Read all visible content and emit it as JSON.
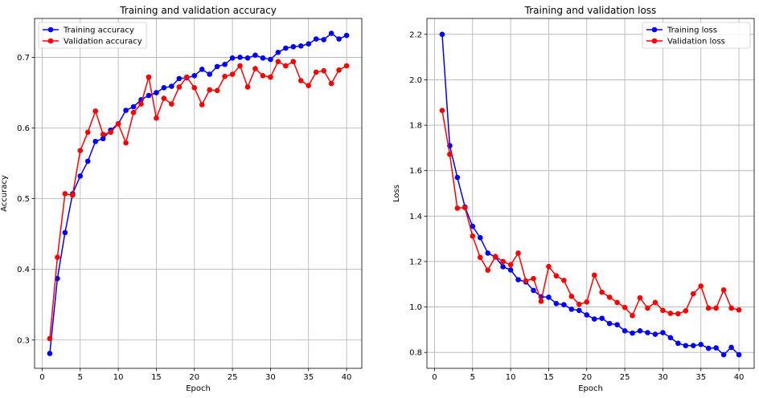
{
  "chart_data": [
    {
      "type": "line",
      "title": "Training and validation accuracy",
      "xlabel": "Epoch",
      "ylabel": "Accuracy",
      "xlim": [
        -1,
        42
      ],
      "ylim": [
        0.26,
        0.755
      ],
      "xticks": [
        0,
        5,
        10,
        15,
        20,
        25,
        30,
        35,
        40
      ],
      "yticks": [
        0.3,
        0.4,
        0.5,
        0.6,
        0.7
      ],
      "grid": true,
      "legend": "top-left",
      "x": [
        1,
        2,
        3,
        4,
        5,
        6,
        7,
        8,
        9,
        10,
        11,
        12,
        13,
        14,
        15,
        16,
        17,
        18,
        19,
        20,
        21,
        22,
        23,
        24,
        25,
        26,
        27,
        28,
        29,
        30,
        31,
        32,
        33,
        34,
        35,
        36,
        37,
        38,
        39,
        40
      ],
      "series": [
        {
          "name": "Training accuracy",
          "color": "#0000ff",
          "values": [
            0.281,
            0.387,
            0.452,
            0.507,
            0.532,
            0.553,
            0.581,
            0.585,
            0.597,
            0.606,
            0.625,
            0.63,
            0.64,
            0.646,
            0.65,
            0.657,
            0.659,
            0.67,
            0.671,
            0.674,
            0.683,
            0.676,
            0.687,
            0.69,
            0.699,
            0.7,
            0.699,
            0.703,
            0.699,
            0.697,
            0.707,
            0.713,
            0.715,
            0.716,
            0.719,
            0.726,
            0.725,
            0.734,
            0.726,
            0.731
          ]
        },
        {
          "name": "Validation accuracy",
          "color": "#ff0000",
          "values": [
            0.302,
            0.417,
            0.507,
            0.505,
            0.568,
            0.594,
            0.624,
            0.591,
            0.594,
            0.606,
            0.579,
            0.622,
            0.634,
            0.672,
            0.614,
            0.642,
            0.634,
            0.658,
            0.672,
            0.657,
            0.633,
            0.654,
            0.653,
            0.673,
            0.676,
            0.688,
            0.658,
            0.684,
            0.674,
            0.672,
            0.694,
            0.688,
            0.694,
            0.667,
            0.66,
            0.679,
            0.681,
            0.663,
            0.682,
            0.688
          ]
        }
      ]
    },
    {
      "type": "line",
      "title": "Training and validation loss",
      "xlabel": "Epoch",
      "ylabel": "Loss",
      "xlim": [
        -1,
        42
      ],
      "ylim": [
        0.73,
        2.27
      ],
      "xticks": [
        0,
        5,
        10,
        15,
        20,
        25,
        30,
        35,
        40
      ],
      "yticks": [
        0.8,
        1.0,
        1.2,
        1.4,
        1.6,
        1.8,
        2.0,
        2.2
      ],
      "grid": true,
      "legend": "top-right",
      "x": [
        1,
        2,
        3,
        4,
        5,
        6,
        7,
        8,
        9,
        10,
        11,
        12,
        13,
        14,
        15,
        16,
        17,
        18,
        19,
        20,
        21,
        22,
        23,
        24,
        25,
        26,
        27,
        28,
        29,
        30,
        31,
        32,
        33,
        34,
        35,
        36,
        37,
        38,
        39,
        40
      ],
      "series": [
        {
          "name": "Training loss",
          "color": "#0000ff",
          "values": [
            2.2,
            1.71,
            1.57,
            1.44,
            1.355,
            1.305,
            1.237,
            1.22,
            1.177,
            1.163,
            1.12,
            1.11,
            1.073,
            1.045,
            1.043,
            1.015,
            1.01,
            0.99,
            0.985,
            0.965,
            0.947,
            0.95,
            0.927,
            0.922,
            0.895,
            0.885,
            0.895,
            0.887,
            0.88,
            0.887,
            0.865,
            0.84,
            0.83,
            0.83,
            0.835,
            0.818,
            0.82,
            0.79,
            0.822,
            0.79
          ]
        },
        {
          "name": "Validation loss",
          "color": "#ff0000",
          "values": [
            1.865,
            1.672,
            1.435,
            1.437,
            1.312,
            1.218,
            1.162,
            1.222,
            1.2,
            1.186,
            1.237,
            1.115,
            1.125,
            1.025,
            1.178,
            1.137,
            1.117,
            1.047,
            1.012,
            1.022,
            1.14,
            1.065,
            1.043,
            1.02,
            0.998,
            0.962,
            1.04,
            0.995,
            1.02,
            0.985,
            0.972,
            0.97,
            0.983,
            1.058,
            1.092,
            0.995,
            0.995,
            1.075,
            0.995,
            0.987
          ]
        }
      ]
    }
  ]
}
